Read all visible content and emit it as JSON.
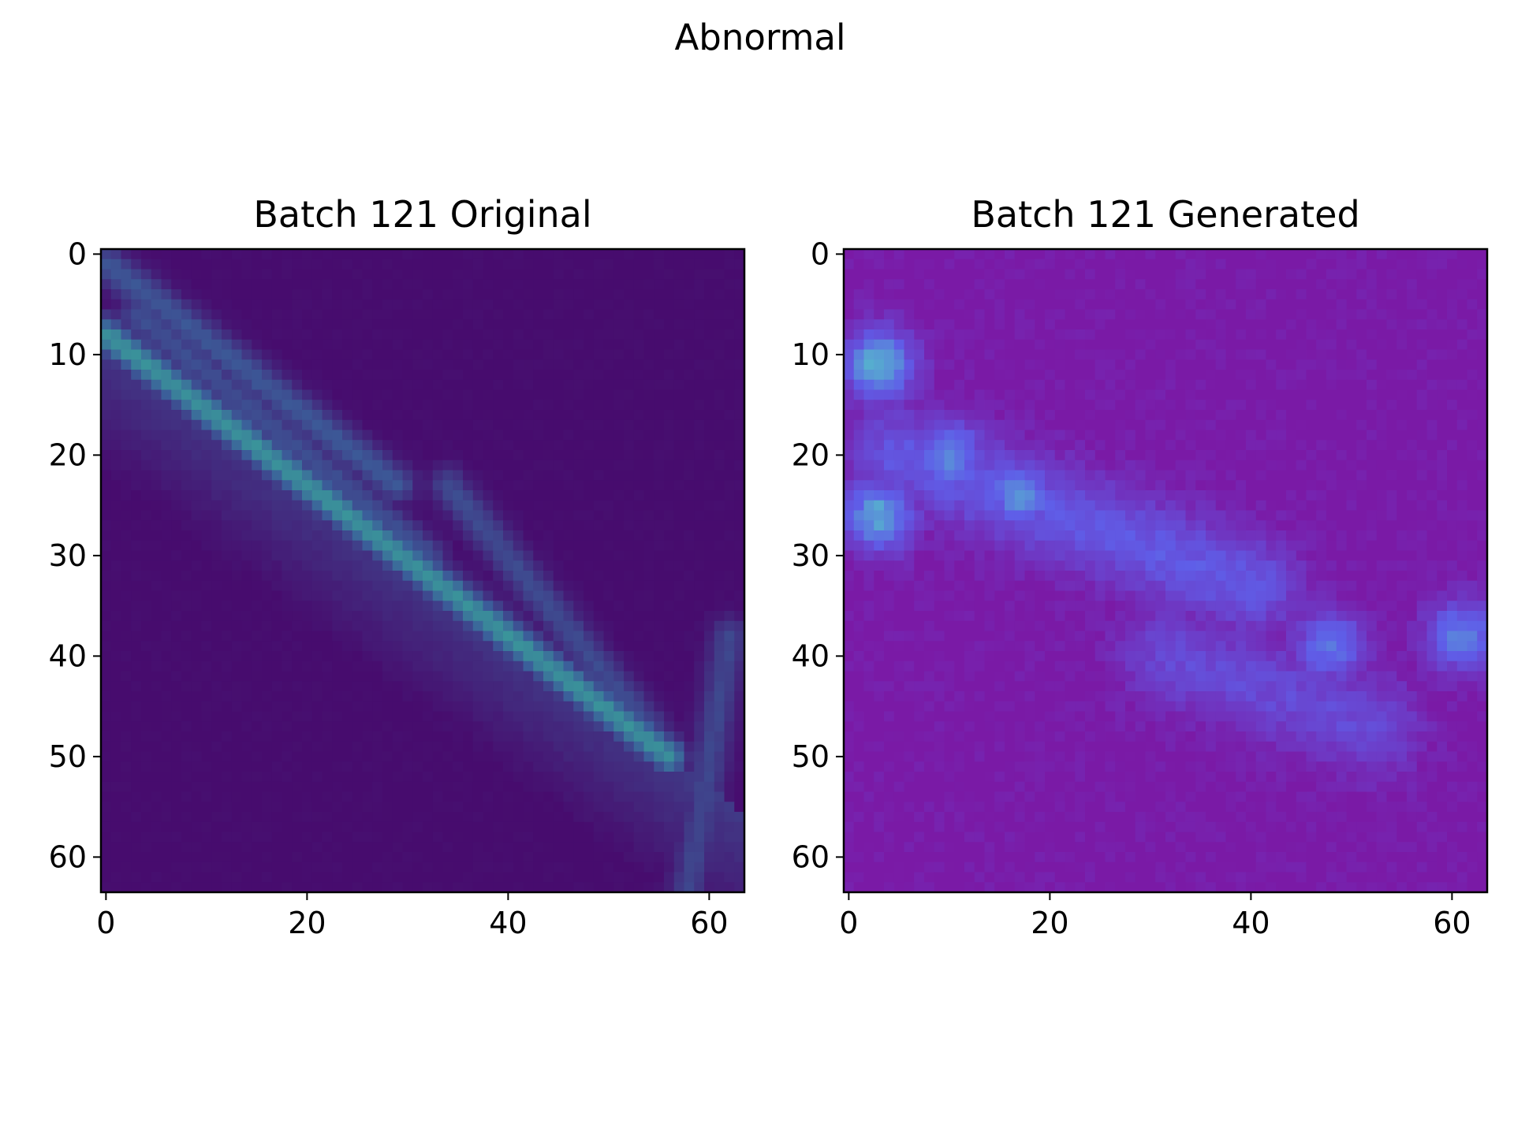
{
  "figure": {
    "title": "Abnormal"
  },
  "chart_data": [
    {
      "type": "heatmap",
      "title": "Batch 121 Original",
      "xlabel": "",
      "ylabel": "",
      "xlim": [
        -0.5,
        63.5
      ],
      "ylim": [
        63.5,
        -0.5
      ],
      "y_inverted": true,
      "x_ticks": [
        0,
        20,
        40,
        60
      ],
      "y_ticks": [
        0,
        10,
        20,
        30,
        40,
        50,
        60
      ],
      "grid_size": [
        64,
        64
      ],
      "colormap": "viridis",
      "colors": {
        "background": "#470c6e",
        "mid": "#3b5f9a",
        "peak": "#39c29a"
      },
      "features": [
        {
          "name": "main streak",
          "from": [
            0,
            8
          ],
          "to": [
            56,
            50
          ],
          "intensity": 0.75
        },
        {
          "name": "upper streak",
          "from": [
            0,
            1
          ],
          "to": [
            29,
            23
          ],
          "intensity": 0.45
        },
        {
          "name": "middle streak",
          "from": [
            3,
            6
          ],
          "to": [
            32,
            30
          ],
          "intensity": 0.4
        },
        {
          "name": "secondary arch",
          "from": [
            34,
            23
          ],
          "to": [
            54,
            47
          ],
          "intensity": 0.38
        },
        {
          "name": "right edge streak",
          "from": [
            62,
            38
          ],
          "to": [
            58,
            63
          ],
          "intensity": 0.35
        }
      ]
    },
    {
      "type": "heatmap",
      "title": "Batch 121 Generated",
      "xlabel": "",
      "ylabel": "",
      "xlim": [
        -0.5,
        63.5
      ],
      "ylim": [
        63.5,
        -0.5
      ],
      "y_inverted": true,
      "x_ticks": [
        0,
        20,
        40,
        60
      ],
      "y_ticks": [
        0,
        10,
        20,
        30,
        40,
        50,
        60
      ],
      "grid_size": [
        64,
        64
      ],
      "colormap": "rgb-composite",
      "colors": {
        "background": "#7a1aa6",
        "mid": "#5f5ee8",
        "peak": "#52d6c2"
      },
      "features": [
        {
          "name": "bright spot",
          "at": [
            3,
            11
          ],
          "intensity": 0.85
        },
        {
          "name": "bright spot",
          "at": [
            3,
            26
          ],
          "intensity": 0.8
        },
        {
          "name": "bright spot",
          "at": [
            10,
            20
          ],
          "intensity": 0.7
        },
        {
          "name": "bright spot",
          "at": [
            17,
            24
          ],
          "intensity": 0.7
        },
        {
          "name": "bright spot",
          "at": [
            48,
            39
          ],
          "intensity": 0.6
        },
        {
          "name": "bright spot",
          "at": [
            61,
            38
          ],
          "intensity": 0.65
        },
        {
          "name": "diffuse band",
          "from": [
            5,
            20
          ],
          "to": [
            40,
            33
          ],
          "intensity": 0.45
        },
        {
          "name": "diffuse band",
          "from": [
            32,
            40
          ],
          "to": [
            52,
            47
          ],
          "intensity": 0.35
        }
      ]
    }
  ]
}
